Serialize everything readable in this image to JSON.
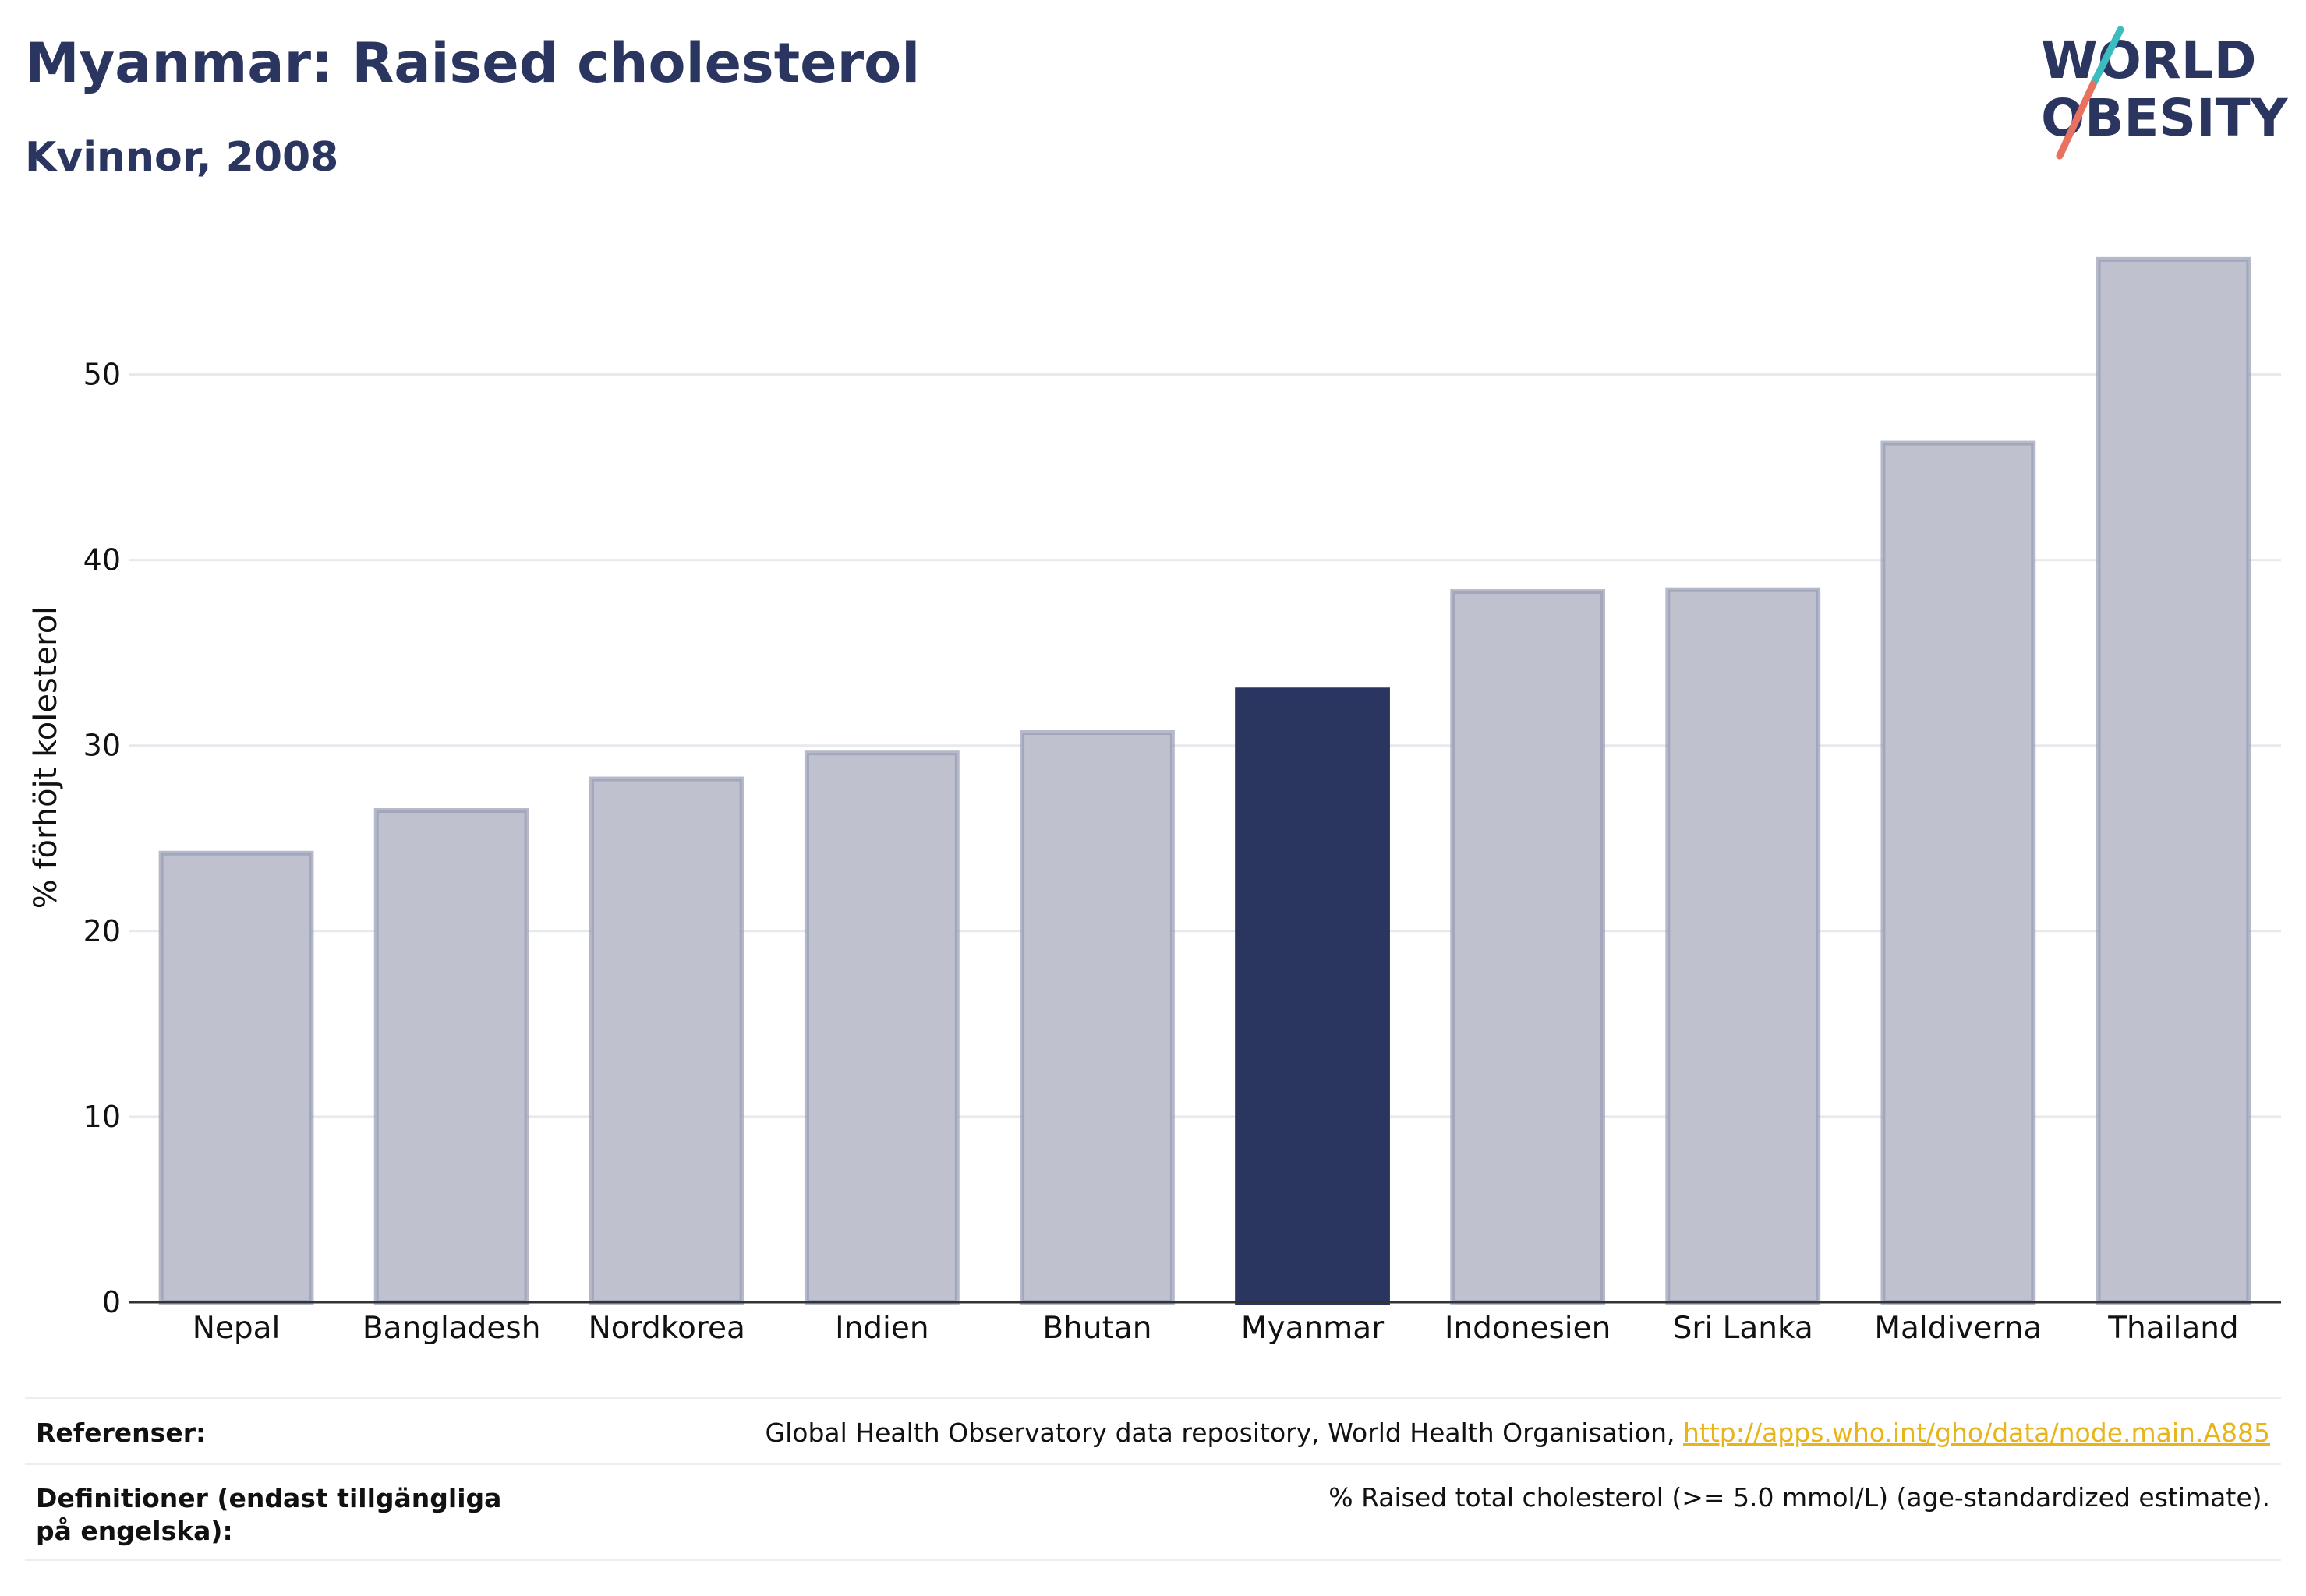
{
  "header": {
    "title": "Myanmar: Raised cholesterol",
    "subtitle": "Kvinnor, 2008"
  },
  "logo": {
    "line1": "W",
    "line1_rest": "RLD",
    "line2_rest": "BESITY",
    "accent_teal": "#3bbcbf",
    "accent_coral": "#e8715f"
  },
  "chart_data": {
    "type": "bar",
    "categories": [
      "Nepal",
      "Bangladesh",
      "Nordkorea",
      "Indien",
      "Bhutan",
      "Myanmar",
      "Indonesien",
      "Sri Lanka",
      "Maldiverna",
      "Thailand"
    ],
    "values": [
      24.2,
      26.5,
      28.2,
      29.6,
      30.7,
      33.0,
      38.3,
      38.4,
      46.3,
      56.2
    ],
    "highlight": "Myanmar",
    "ylabel": "% förhöjt kolesterol",
    "yticks": [
      0,
      10,
      20,
      30,
      40,
      50
    ],
    "ylim": [
      0,
      58
    ],
    "grid": true,
    "colors": {
      "bar": "#bfc2ce",
      "bar_edge": "#959bb3",
      "highlight": "#2a3560",
      "grid": "#e8e9ee",
      "axis": "#333333"
    }
  },
  "references": {
    "ref_label": "Referenser:",
    "ref_text": "Global Health Observatory data repository, World Health Organisation, ",
    "ref_link": "http://apps.who.int/gho/data/node.main.A885",
    "def_label": "Definitioner (endast tillgängliga på engelska):",
    "def_text": "% Raised total cholesterol (>= 5.0 mmol/L) (age-standardized estimate)."
  }
}
